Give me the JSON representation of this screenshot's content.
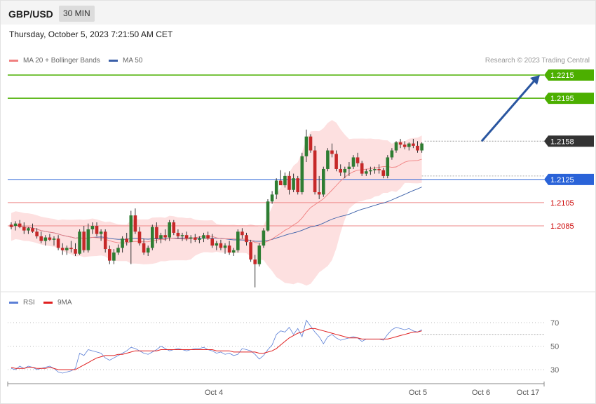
{
  "header": {
    "symbol": "GBP/USD",
    "timeframe": "30 MIN",
    "datetime": "Thursday, October 5, 2023 7:21:50 AM CET"
  },
  "legend_main": {
    "ma_bb_label": "MA 20 + Bollinger Bands",
    "ma50_label": "MA 50",
    "credit": "Research © 2023 Trading Central",
    "ma_bb_color": "#f08080",
    "ma50_color": "#3a5fa8"
  },
  "legend_rsi": {
    "rsi_label": "RSI",
    "ma9_label": "9MA",
    "rsi_color": "#5b7fd6",
    "ma9_color": "#e02020"
  },
  "colors": {
    "up": "#2e7d32",
    "down": "#c62828",
    "target": "#4caf00",
    "current": "#333333",
    "pivot": "#2a63d8",
    "support": "#cc0000",
    "band_fill": "#fde0e0"
  },
  "chart_data": [
    {
      "type": "candlestick",
      "title": "GBP/USD",
      "timeframe": "30 MIN",
      "x_ticks": [
        "Oct 4",
        "Oct 5",
        "Oct 6",
        "Oct 17"
      ],
      "ylim": [
        2064,
        2232
      ],
      "y_unit_note": "",
      "levels": [
        {
          "label": "1.2215",
          "value": 1.2215,
          "kind": "target"
        },
        {
          "label": "1.2195",
          "value": 1.2195,
          "kind": "target"
        },
        {
          "label": "1.2158",
          "value": 1.2158,
          "kind": "current"
        },
        {
          "label": "1.2125",
          "value": 1.2125,
          "kind": "pivot"
        },
        {
          "label": "1.2105",
          "value": 1.2105,
          "kind": "support"
        },
        {
          "label": "1.2085",
          "value": 1.2085,
          "kind": "support"
        }
      ],
      "candles": [
        [
          1.2086,
          1.2088,
          1.2082,
          1.2084
        ],
        [
          1.2085,
          1.2089,
          1.2081,
          1.2087
        ],
        [
          1.2087,
          1.209,
          1.2083,
          1.2084
        ],
        [
          1.2084,
          1.2088,
          1.2078,
          1.2081
        ],
        [
          1.2081,
          1.2084,
          1.2078,
          1.2083
        ],
        [
          1.2083,
          1.2087,
          1.2079,
          1.208
        ],
        [
          1.208,
          1.2083,
          1.2074,
          1.2076
        ],
        [
          1.2076,
          1.208,
          1.207,
          1.2072
        ],
        [
          1.2072,
          1.2077,
          1.2068,
          1.2075
        ],
        [
          1.2075,
          1.2078,
          1.2072,
          1.2073
        ],
        [
          1.2073,
          1.2076,
          1.2068,
          1.2074
        ],
        [
          1.2074,
          1.2077,
          1.2064,
          1.2066
        ],
        [
          1.2066,
          1.207,
          1.206,
          1.2064
        ],
        [
          1.2064,
          1.2068,
          1.206,
          1.2066
        ],
        [
          1.2066,
          1.2072,
          1.2062,
          1.2065
        ],
        [
          1.2065,
          1.207,
          1.2059,
          1.2061
        ],
        [
          1.2061,
          1.2082,
          1.206,
          1.208
        ],
        [
          1.208,
          1.2085,
          1.2062,
          1.2064
        ],
        [
          1.2064,
          1.2087,
          1.2062,
          1.2082
        ],
        [
          1.2082,
          1.2088,
          1.2078,
          1.2085
        ],
        [
          1.2085,
          1.2088,
          1.2076,
          1.2078
        ],
        [
          1.2078,
          1.2082,
          1.2072,
          1.208
        ],
        [
          1.208,
          1.2082,
          1.2062,
          1.2065
        ],
        [
          1.2065,
          1.2068,
          1.2052,
          1.2055
        ],
        [
          1.2055,
          1.2065,
          1.2052,
          1.2062
        ],
        [
          1.2062,
          1.2069,
          1.206,
          1.2066
        ],
        [
          1.2066,
          1.2076,
          1.2062,
          1.2074
        ],
        [
          1.2074,
          1.2079,
          1.2068,
          1.2071
        ],
        [
          1.2071,
          1.2098,
          1.2052,
          1.2094
        ],
        [
          1.2094,
          1.21,
          1.2078,
          1.208
        ],
        [
          1.208,
          1.2084,
          1.2068,
          1.207
        ],
        [
          1.207,
          1.2074,
          1.206,
          1.2062
        ],
        [
          1.2062,
          1.2068,
          1.2059,
          1.2066
        ],
        [
          1.2066,
          1.2086,
          1.2064,
          1.2084
        ],
        [
          1.2084,
          1.2088,
          1.207,
          1.2074
        ],
        [
          1.2074,
          1.2079,
          1.207,
          1.2077
        ],
        [
          1.2077,
          1.2082,
          1.2072,
          1.2075
        ],
        [
          1.2075,
          1.209,
          1.2072,
          1.2088
        ],
        [
          1.2088,
          1.209,
          1.2077,
          1.2079
        ],
        [
          1.2079,
          1.2082,
          1.2074,
          1.2076
        ],
        [
          1.2076,
          1.2079,
          1.2072,
          1.2077
        ],
        [
          1.2077,
          1.208,
          1.2072,
          1.2074
        ],
        [
          1.2074,
          1.2077,
          1.207,
          1.2075
        ],
        [
          1.2075,
          1.2078,
          1.2071,
          1.2073
        ],
        [
          1.2073,
          1.2076,
          1.207,
          1.2074
        ],
        [
          1.2074,
          1.2079,
          1.2071,
          1.2077
        ],
        [
          1.2077,
          1.208,
          1.2073,
          1.2074
        ],
        [
          1.2074,
          1.2078,
          1.2066,
          1.2068
        ],
        [
          1.2068,
          1.2072,
          1.2064,
          1.207
        ],
        [
          1.207,
          1.2073,
          1.2064,
          1.2066
        ],
        [
          1.2066,
          1.207,
          1.2061,
          1.2068
        ],
        [
          1.2068,
          1.2072,
          1.206,
          1.2062
        ],
        [
          1.2062,
          1.2066,
          1.2059,
          1.2064
        ],
        [
          1.2064,
          1.2082,
          1.2062,
          1.208
        ],
        [
          1.208,
          1.2083,
          1.2074,
          1.2077
        ],
        [
          1.2077,
          1.2079,
          1.2068,
          1.2071
        ],
        [
          1.2071,
          1.2073,
          1.2054,
          1.2056
        ],
        [
          1.2056,
          1.206,
          1.2032,
          1.2052
        ],
        [
          1.2052,
          1.207,
          1.205,
          1.2068
        ],
        [
          1.2068,
          1.2083,
          1.2066,
          1.2081
        ],
        [
          1.2081,
          1.2108,
          1.208,
          1.2106
        ],
        [
          1.2106,
          1.2115,
          1.2104,
          1.2112
        ],
        [
          1.2112,
          1.2126,
          1.2108,
          1.2124
        ],
        [
          1.2124,
          1.2133,
          1.2122,
          1.212
        ],
        [
          1.212,
          1.2131,
          1.2118,
          1.2128
        ],
        [
          1.2128,
          1.2132,
          1.2112,
          1.2116
        ],
        [
          1.2116,
          1.213,
          1.2114,
          1.2126
        ],
        [
          1.2126,
          1.2128,
          1.2112,
          1.2114
        ],
        [
          1.2114,
          1.2148,
          1.2112,
          1.2145
        ],
        [
          1.2145,
          1.2168,
          1.214,
          1.2162
        ],
        [
          1.2162,
          1.2164,
          1.2148,
          1.215
        ],
        [
          1.215,
          1.2154,
          1.2112,
          1.2114
        ],
        [
          1.2114,
          1.2128,
          1.2108,
          1.2112
        ],
        [
          1.2112,
          1.2136,
          1.211,
          1.2134
        ],
        [
          1.2134,
          1.2152,
          1.2132,
          1.215
        ],
        [
          1.215,
          1.2156,
          1.2144,
          1.2147
        ],
        [
          1.2147,
          1.215,
          1.2132,
          1.2134
        ],
        [
          1.2134,
          1.2138,
          1.2128,
          1.2131
        ],
        [
          1.2131,
          1.2136,
          1.2126,
          1.2134
        ],
        [
          1.2134,
          1.214,
          1.2128,
          1.2136
        ],
        [
          1.2136,
          1.2146,
          1.2134,
          1.2144
        ],
        [
          1.2144,
          1.2148,
          1.2136,
          1.2139
        ],
        [
          1.2139,
          1.2141,
          1.2128,
          1.213
        ],
        [
          1.213,
          1.2134,
          1.2128,
          1.2132
        ],
        [
          1.2132,
          1.2136,
          1.2129,
          1.2133
        ],
        [
          1.2133,
          1.2136,
          1.213,
          1.2134
        ],
        [
          1.2134,
          1.2138,
          1.213,
          1.2133
        ],
        [
          1.2133,
          1.2135,
          1.2126,
          1.2128
        ],
        [
          1.2128,
          1.2146,
          1.2126,
          1.2144
        ],
        [
          1.2144,
          1.2152,
          1.2142,
          1.215
        ],
        [
          1.215,
          1.2158,
          1.2148,
          1.2157
        ],
        [
          1.2157,
          1.216,
          1.2152,
          1.2155
        ],
        [
          1.2155,
          1.2158,
          1.2151,
          1.2153
        ],
        [
          1.2153,
          1.2157,
          1.215,
          1.2156
        ],
        [
          1.2156,
          1.216,
          1.2152,
          1.2154
        ],
        [
          1.2154,
          1.2158,
          1.2148,
          1.215
        ],
        [
          1.215,
          1.2157,
          1.2148,
          1.2156
        ]
      ],
      "forecast_arrow": {
        "from": 1.2158,
        "to": 1.2215
      }
    },
    {
      "type": "line",
      "title": "",
      "levels": [
        {
          "label": "70",
          "value": 70
        },
        {
          "label": "50",
          "value": 50
        },
        {
          "label": "30",
          "value": 30
        }
      ],
      "ylim": [
        20,
        80
      ],
      "series": [
        {
          "name": "RSI",
          "values": [
            31,
            30,
            33,
            31,
            33,
            32,
            30,
            31,
            32,
            33,
            31,
            28,
            27,
            28,
            29,
            31,
            44,
            42,
            47,
            46,
            45,
            44,
            40,
            38,
            40,
            42,
            44,
            46,
            49,
            48,
            46,
            44,
            43,
            45,
            47,
            50,
            48,
            46,
            47,
            48,
            47,
            46,
            47,
            48,
            48,
            49,
            47,
            46,
            44,
            45,
            43,
            44,
            42,
            43,
            48,
            47,
            46,
            43,
            39,
            42,
            47,
            51,
            60,
            63,
            62,
            66,
            60,
            65,
            58,
            72,
            67,
            62,
            58,
            52,
            58,
            60,
            57,
            55,
            56,
            57,
            58,
            57,
            54,
            56,
            56,
            56,
            56,
            55,
            60,
            64,
            66,
            65,
            64,
            65,
            63,
            62,
            64
          ]
        },
        {
          "name": "9MA",
          "values": [
            32,
            31,
            31,
            31,
            32,
            32,
            31,
            31,
            31,
            32,
            31,
            30,
            30,
            30,
            30,
            30,
            32,
            34,
            36,
            38,
            40,
            41,
            42,
            42,
            42,
            43,
            43,
            44,
            45,
            46,
            46,
            46,
            46,
            46,
            46,
            47,
            47,
            47,
            47,
            47,
            47,
            47,
            47,
            47,
            47,
            47,
            47,
            47,
            46,
            46,
            46,
            46,
            45,
            45,
            45,
            45,
            45,
            45,
            44,
            44,
            45,
            46,
            48,
            51,
            54,
            57,
            59,
            61,
            62,
            64,
            65,
            65,
            64,
            63,
            62,
            61,
            60,
            59,
            58,
            57,
            57,
            57,
            56,
            56,
            56,
            56,
            56,
            56,
            56,
            57,
            58,
            59,
            60,
            61,
            62,
            62,
            63
          ]
        }
      ]
    }
  ]
}
